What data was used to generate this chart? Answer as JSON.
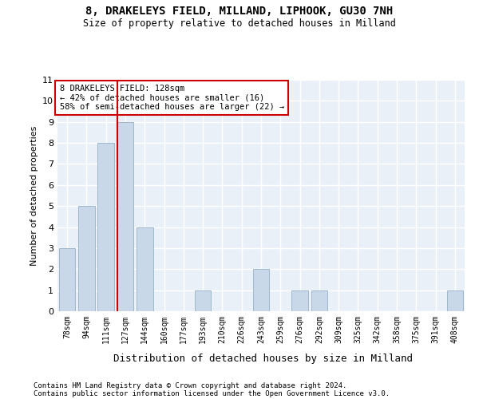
{
  "title1": "8, DRAKELEYS FIELD, MILLAND, LIPHOOK, GU30 7NH",
  "title2": "Size of property relative to detached houses in Milland",
  "xlabel": "Distribution of detached houses by size in Milland",
  "ylabel": "Number of detached properties",
  "footnote1": "Contains HM Land Registry data © Crown copyright and database right 2024.",
  "footnote2": "Contains public sector information licensed under the Open Government Licence v3.0.",
  "bin_labels": [
    "78sqm",
    "94sqm",
    "111sqm",
    "127sqm",
    "144sqm",
    "160sqm",
    "177sqm",
    "193sqm",
    "210sqm",
    "226sqm",
    "243sqm",
    "259sqm",
    "276sqm",
    "292sqm",
    "309sqm",
    "325sqm",
    "342sqm",
    "358sqm",
    "375sqm",
    "391sqm",
    "408sqm"
  ],
  "values": [
    3,
    5,
    8,
    9,
    4,
    0,
    0,
    1,
    0,
    0,
    2,
    0,
    1,
    1,
    0,
    0,
    0,
    0,
    0,
    0,
    1
  ],
  "bar_color": "#c8d8e8",
  "bar_edge_color": "#a0b8cc",
  "background_color": "#eaf0f8",
  "grid_color": "#ffffff",
  "vline_color": "#cc0000",
  "annotation_box_color": "#cc0000",
  "ylim": [
    0,
    11
  ],
  "yticks": [
    0,
    1,
    2,
    3,
    4,
    5,
    6,
    7,
    8,
    9,
    10,
    11
  ]
}
